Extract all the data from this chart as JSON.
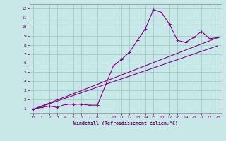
{
  "xlabel": "Windchill (Refroidissement éolien,°C)",
  "xlim": [
    -0.5,
    23.5
  ],
  "ylim": [
    0.5,
    12.5
  ],
  "xticks": [
    0,
    1,
    2,
    3,
    4,
    5,
    6,
    7,
    8,
    10,
    11,
    12,
    13,
    14,
    15,
    16,
    17,
    18,
    19,
    20,
    21,
    22,
    23
  ],
  "yticks": [
    1,
    2,
    3,
    4,
    5,
    6,
    7,
    8,
    9,
    10,
    11,
    12
  ],
  "bg_color": "#c8e8e8",
  "line_color": "#880088",
  "grid_color": "#a0cccc",
  "line1_x": [
    0,
    1,
    2,
    3,
    4,
    5,
    6,
    7,
    8,
    10,
    11,
    12,
    13,
    14,
    15,
    16,
    17,
    18,
    19,
    20,
    21,
    22,
    23
  ],
  "line1_y": [
    0.9,
    1.1,
    1.25,
    1.1,
    1.45,
    1.45,
    1.45,
    1.35,
    1.35,
    5.7,
    6.4,
    7.2,
    8.5,
    9.8,
    11.9,
    11.6,
    10.3,
    8.5,
    8.3,
    8.8,
    9.5,
    8.7,
    8.8
  ],
  "line2_x": [
    0,
    23
  ],
  "line2_y": [
    0.9,
    8.8
  ],
  "line3_x": [
    0,
    23
  ],
  "line3_y": [
    0.9,
    7.9
  ]
}
